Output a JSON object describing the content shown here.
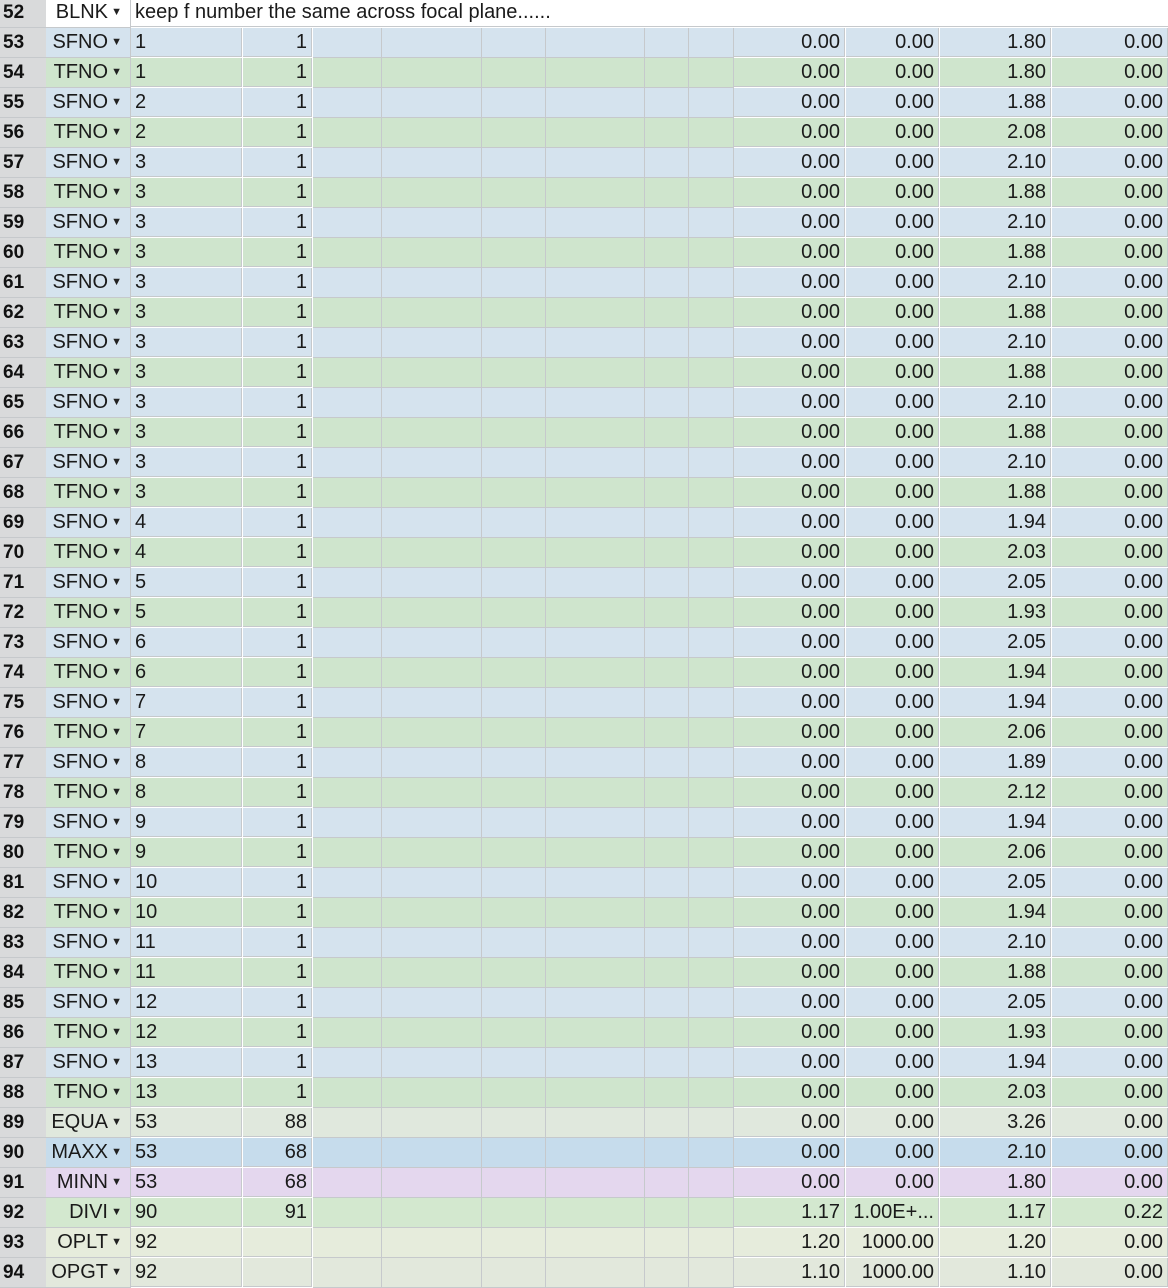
{
  "dropdown_icon": "caret-down-icon",
  "colors": {
    "SFNO": "#d5e3ee",
    "TFNO": "#cfe5cd",
    "EQUA": "#e0e8dd",
    "MAXX": "#c6dcec",
    "MINN": "#e4d7ee",
    "DIVI": "#d3e8cf",
    "OPLT": "#e6ecdc",
    "OPGT": "#e2e8dc",
    "BLNK": "#ffffff",
    "header": "#d9dadb"
  },
  "note_row": {
    "num": "52",
    "type": "BLNK",
    "comment": "keep f number the same across focal plane......"
  },
  "rows": [
    {
      "num": "53",
      "type": "SFNO",
      "a": "1",
      "b": "1",
      "v1": "0.00",
      "v2": "0.00",
      "v3": "1.80",
      "v4": "0.00"
    },
    {
      "num": "54",
      "type": "TFNO",
      "a": "1",
      "b": "1",
      "v1": "0.00",
      "v2": "0.00",
      "v3": "1.80",
      "v4": "0.00"
    },
    {
      "num": "55",
      "type": "SFNO",
      "a": "2",
      "b": "1",
      "v1": "0.00",
      "v2": "0.00",
      "v3": "1.88",
      "v4": "0.00"
    },
    {
      "num": "56",
      "type": "TFNO",
      "a": "2",
      "b": "1",
      "v1": "0.00",
      "v2": "0.00",
      "v3": "2.08",
      "v4": "0.00"
    },
    {
      "num": "57",
      "type": "SFNO",
      "a": "3",
      "b": "1",
      "v1": "0.00",
      "v2": "0.00",
      "v3": "2.10",
      "v4": "0.00"
    },
    {
      "num": "58",
      "type": "TFNO",
      "a": "3",
      "b": "1",
      "v1": "0.00",
      "v2": "0.00",
      "v3": "1.88",
      "v4": "0.00"
    },
    {
      "num": "59",
      "type": "SFNO",
      "a": "3",
      "b": "1",
      "v1": "0.00",
      "v2": "0.00",
      "v3": "2.10",
      "v4": "0.00"
    },
    {
      "num": "60",
      "type": "TFNO",
      "a": "3",
      "b": "1",
      "v1": "0.00",
      "v2": "0.00",
      "v3": "1.88",
      "v4": "0.00"
    },
    {
      "num": "61",
      "type": "SFNO",
      "a": "3",
      "b": "1",
      "v1": "0.00",
      "v2": "0.00",
      "v3": "2.10",
      "v4": "0.00"
    },
    {
      "num": "62",
      "type": "TFNO",
      "a": "3",
      "b": "1",
      "v1": "0.00",
      "v2": "0.00",
      "v3": "1.88",
      "v4": "0.00"
    },
    {
      "num": "63",
      "type": "SFNO",
      "a": "3",
      "b": "1",
      "v1": "0.00",
      "v2": "0.00",
      "v3": "2.10",
      "v4": "0.00"
    },
    {
      "num": "64",
      "type": "TFNO",
      "a": "3",
      "b": "1",
      "v1": "0.00",
      "v2": "0.00",
      "v3": "1.88",
      "v4": "0.00"
    },
    {
      "num": "65",
      "type": "SFNO",
      "a": "3",
      "b": "1",
      "v1": "0.00",
      "v2": "0.00",
      "v3": "2.10",
      "v4": "0.00"
    },
    {
      "num": "66",
      "type": "TFNO",
      "a": "3",
      "b": "1",
      "v1": "0.00",
      "v2": "0.00",
      "v3": "1.88",
      "v4": "0.00"
    },
    {
      "num": "67",
      "type": "SFNO",
      "a": "3",
      "b": "1",
      "v1": "0.00",
      "v2": "0.00",
      "v3": "2.10",
      "v4": "0.00"
    },
    {
      "num": "68",
      "type": "TFNO",
      "a": "3",
      "b": "1",
      "v1": "0.00",
      "v2": "0.00",
      "v3": "1.88",
      "v4": "0.00"
    },
    {
      "num": "69",
      "type": "SFNO",
      "a": "4",
      "b": "1",
      "v1": "0.00",
      "v2": "0.00",
      "v3": "1.94",
      "v4": "0.00"
    },
    {
      "num": "70",
      "type": "TFNO",
      "a": "4",
      "b": "1",
      "v1": "0.00",
      "v2": "0.00",
      "v3": "2.03",
      "v4": "0.00"
    },
    {
      "num": "71",
      "type": "SFNO",
      "a": "5",
      "b": "1",
      "v1": "0.00",
      "v2": "0.00",
      "v3": "2.05",
      "v4": "0.00"
    },
    {
      "num": "72",
      "type": "TFNO",
      "a": "5",
      "b": "1",
      "v1": "0.00",
      "v2": "0.00",
      "v3": "1.93",
      "v4": "0.00"
    },
    {
      "num": "73",
      "type": "SFNO",
      "a": "6",
      "b": "1",
      "v1": "0.00",
      "v2": "0.00",
      "v3": "2.05",
      "v4": "0.00"
    },
    {
      "num": "74",
      "type": "TFNO",
      "a": "6",
      "b": "1",
      "v1": "0.00",
      "v2": "0.00",
      "v3": "1.94",
      "v4": "0.00"
    },
    {
      "num": "75",
      "type": "SFNO",
      "a": "7",
      "b": "1",
      "v1": "0.00",
      "v2": "0.00",
      "v3": "1.94",
      "v4": "0.00"
    },
    {
      "num": "76",
      "type": "TFNO",
      "a": "7",
      "b": "1",
      "v1": "0.00",
      "v2": "0.00",
      "v3": "2.06",
      "v4": "0.00"
    },
    {
      "num": "77",
      "type": "SFNO",
      "a": "8",
      "b": "1",
      "v1": "0.00",
      "v2": "0.00",
      "v3": "1.89",
      "v4": "0.00"
    },
    {
      "num": "78",
      "type": "TFNO",
      "a": "8",
      "b": "1",
      "v1": "0.00",
      "v2": "0.00",
      "v3": "2.12",
      "v4": "0.00"
    },
    {
      "num": "79",
      "type": "SFNO",
      "a": "9",
      "b": "1",
      "v1": "0.00",
      "v2": "0.00",
      "v3": "1.94",
      "v4": "0.00"
    },
    {
      "num": "80",
      "type": "TFNO",
      "a": "9",
      "b": "1",
      "v1": "0.00",
      "v2": "0.00",
      "v3": "2.06",
      "v4": "0.00"
    },
    {
      "num": "81",
      "type": "SFNO",
      "a": "10",
      "b": "1",
      "v1": "0.00",
      "v2": "0.00",
      "v3": "2.05",
      "v4": "0.00"
    },
    {
      "num": "82",
      "type": "TFNO",
      "a": "10",
      "b": "1",
      "v1": "0.00",
      "v2": "0.00",
      "v3": "1.94",
      "v4": "0.00"
    },
    {
      "num": "83",
      "type": "SFNO",
      "a": "11",
      "b": "1",
      "v1": "0.00",
      "v2": "0.00",
      "v3": "2.10",
      "v4": "0.00"
    },
    {
      "num": "84",
      "type": "TFNO",
      "a": "11",
      "b": "1",
      "v1": "0.00",
      "v2": "0.00",
      "v3": "1.88",
      "v4": "0.00"
    },
    {
      "num": "85",
      "type": "SFNO",
      "a": "12",
      "b": "1",
      "v1": "0.00",
      "v2": "0.00",
      "v3": "2.05",
      "v4": "0.00"
    },
    {
      "num": "86",
      "type": "TFNO",
      "a": "12",
      "b": "1",
      "v1": "0.00",
      "v2": "0.00",
      "v3": "1.93",
      "v4": "0.00"
    },
    {
      "num": "87",
      "type": "SFNO",
      "a": "13",
      "b": "1",
      "v1": "0.00",
      "v2": "0.00",
      "v3": "1.94",
      "v4": "0.00"
    },
    {
      "num": "88",
      "type": "TFNO",
      "a": "13",
      "b": "1",
      "v1": "0.00",
      "v2": "0.00",
      "v3": "2.03",
      "v4": "0.00"
    },
    {
      "num": "89",
      "type": "EQUA",
      "a": "53",
      "b": "88",
      "v1": "0.00",
      "v2": "0.00",
      "v3": "3.26",
      "v4": "0.00"
    },
    {
      "num": "90",
      "type": "MAXX",
      "a": "53",
      "b": "68",
      "v1": "0.00",
      "v2": "0.00",
      "v3": "2.10",
      "v4": "0.00"
    },
    {
      "num": "91",
      "type": "MINN",
      "a": "53",
      "b": "68",
      "v1": "0.00",
      "v2": "0.00",
      "v3": "1.80",
      "v4": "0.00"
    },
    {
      "num": "92",
      "type": "DIVI",
      "a": "90",
      "b": "91",
      "v1": "1.17",
      "v2": "1.00E+...",
      "v3": "1.17",
      "v4": "0.22"
    },
    {
      "num": "93",
      "type": "OPLT",
      "a": "92",
      "b": "",
      "v1": "1.20",
      "v2": "1000.00",
      "v3": "1.20",
      "v4": "0.00"
    },
    {
      "num": "94",
      "type": "OPGT",
      "a": "92",
      "b": "",
      "v1": "1.10",
      "v2": "1000.00",
      "v3": "1.10",
      "v4": "0.00"
    }
  ]
}
